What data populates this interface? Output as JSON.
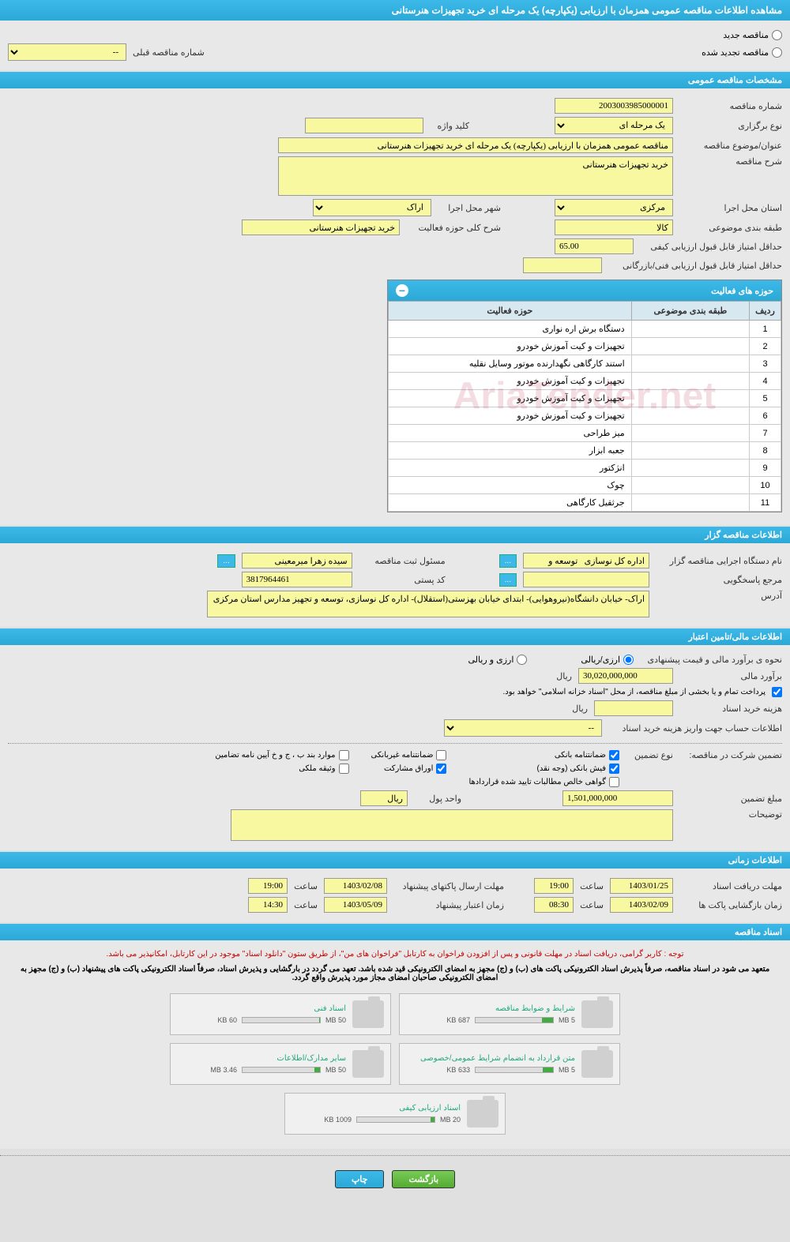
{
  "header": {
    "title": "مشاهده اطلاعات مناقصه عمومی همزمان با ارزیابی (یکپارچه) یک مرحله ای خرید تجهیزات هنرستانی"
  },
  "tender_type": {
    "new_label": "مناقصه جدید",
    "renewed_label": "مناقصه تجدید شده",
    "prev_number_label": "شماره مناقصه قبلی",
    "prev_number_value": "--"
  },
  "general_specs": {
    "section_title": "مشخصات مناقصه عمومی",
    "tender_number_label": "شماره مناقصه",
    "tender_number": "2003003985000001",
    "holding_type_label": "نوع برگزاری",
    "holding_type": "یک مرحله ای",
    "keyword_label": "کلید واژه",
    "keyword": "",
    "subject_label": "عنوان/موضوع مناقصه",
    "subject": "مناقصه عمومی همزمان با ارزیابی (یکپارچه) یک مرحله ای خرید تجهیزات هنرستانی",
    "description_label": "شرح مناقصه",
    "description": "خرید تجهیزات هنرستانی",
    "province_label": "استان محل اجرا",
    "province": "مرکزی",
    "city_label": "شهر محل اجرا",
    "city": "اراک",
    "category_label": "طبقه بندی موضوعی",
    "category": "کالا",
    "activity_scope_label": "شرح کلی حوزه فعالیت",
    "activity_scope": "خرید تجهیزات هنرستانی",
    "min_quality_score_label": "حداقل امتیاز قابل قبول ارزیابی کیفی",
    "min_quality_score": "65.00",
    "min_tech_score_label": "حداقل امتیاز قابل قبول ارزیابی فنی/بازرگانی",
    "min_tech_score": ""
  },
  "activities_table": {
    "title": "حوزه های فعالیت",
    "col_row": "ردیف",
    "col_category": "طبقه بندی موضوعی",
    "col_scope": "حوزه فعالیت",
    "rows": [
      {
        "n": "1",
        "cat": "",
        "scope": "دستگاه برش اره نواری"
      },
      {
        "n": "2",
        "cat": "",
        "scope": "تجهیزات و کیت آموزش خودرو"
      },
      {
        "n": "3",
        "cat": "",
        "scope": "استند کارگاهی نگهدارنده موتور وسایل نقلیه"
      },
      {
        "n": "4",
        "cat": "",
        "scope": "تجهیزات و کیت آموزش خودرو"
      },
      {
        "n": "5",
        "cat": "",
        "scope": "تجهیزات و کیت آموزش خودرو"
      },
      {
        "n": "6",
        "cat": "",
        "scope": "تجهیزات و کیت آموزش خودرو"
      },
      {
        "n": "7",
        "cat": "",
        "scope": "میز طراحی"
      },
      {
        "n": "8",
        "cat": "",
        "scope": "جعبه ابزار"
      },
      {
        "n": "9",
        "cat": "",
        "scope": "انژکتور"
      },
      {
        "n": "10",
        "cat": "",
        "scope": "چوک"
      },
      {
        "n": "11",
        "cat": "",
        "scope": "جرثقیل کارگاهی"
      }
    ]
  },
  "organizer": {
    "section_title": "اطلاعات مناقصه گزار",
    "org_name_label": "نام دستگاه اجرایی مناقصه گزار",
    "org_name": "اداره کل نوسازی   توسعه و",
    "registrar_label": "مسئول ثبت مناقصه",
    "registrar": "سیده زهرا میرمعینی",
    "responder_label": "مرجع پاسخگویی",
    "responder": "",
    "postal_code_label": "کد پستی",
    "postal_code": "3817964461",
    "address_label": "آدرس",
    "address": "اراک- خیابان دانشگاه(نیروهوایی)- ابتدای خیابان بهزستی(استقلال)- اداره کل نوسازی، توسعه و تجهیز مدارس استان مرکزی",
    "more_btn": "..."
  },
  "financial": {
    "section_title": "اطلاعات مالی/تامین اعتبار",
    "estimate_method_label": "نحوه ی برآورد مالی و قیمت پیشنهادی",
    "fx_rial_label": "ارزی/ریالی",
    "fx_and_rial_label": "ارزی و ریالی",
    "estimate_label": "برآورد مالی",
    "estimate": "30,020,000,000",
    "rial_label": "ریال",
    "treasury_note": "پرداخت تمام و یا بخشی از مبلغ مناقصه، از محل \"اسناد خزانه اسلامی\" خواهد بود.",
    "doc_cost_label": "هزینه خرید اسناد",
    "doc_cost": "",
    "account_info_label": "اطلاعات حساب جهت واریز هزینه خرید اسناد",
    "account_info": "--",
    "guarantee_label": "تضمین شرکت در مناقصه:",
    "guarantee_type_label": "نوع تضمین",
    "bank_guarantee": "ضمانتنامه بانکی",
    "nonbank_guarantee": "ضمانتنامه غیربانکی",
    "bylaw_items": "موارد بند ب ، ج و خ آیین نامه تضامین",
    "bank_receipt": "فیش بانکی (وجه نقد)",
    "securities": "اوراق مشارکت",
    "property_bond": "وثیقه ملکی",
    "cert_confirmed": "گواهی خالص مطالبات تایید شده قراردادها",
    "guarantee_amount_label": "مبلغ تضمین",
    "guarantee_amount": "1,501,000,000",
    "currency_unit_label": "واحد پول",
    "currency_unit": "ریال",
    "notes_label": "توضیحات",
    "notes": ""
  },
  "timing": {
    "section_title": "اطلاعات زمانی",
    "doc_deadline_label": "مهلت دریافت اسناد",
    "doc_deadline_date": "1403/01/25",
    "doc_deadline_time": "19:00",
    "envelope_deadline_label": "مهلت ارسال پاکتهای پیشنهاد",
    "envelope_deadline_date": "1403/02/08",
    "envelope_deadline_time": "19:00",
    "opening_label": "زمان بازگشایی پاکت ها",
    "opening_date": "1403/02/09",
    "opening_time": "08:30",
    "validity_label": "زمان اعتبار پیشنهاد",
    "validity_date": "1403/05/09",
    "validity_time": "14:30",
    "time_label": "ساعت"
  },
  "documents": {
    "section_title": "اسناد مناقصه",
    "notice": "توجه : کاربر گرامی، دریافت اسناد در مهلت قانونی و پس از افزودن فراخوان به کارتابل \"فراخوان های من\"، از طریق ستون \"دانلود اسناد\" موجود در این کارتابل، امکانپذیر می باشد.",
    "obligation": "متعهد می شود در اسناد مناقصه، صرفاً پذیرش اسناد الکترونیکی پاکت های (ب) و (ج) مجهز به امضای الکترونیکی قید شده باشد. تعهد می گردد در بارگشایی و پذیرش اسناد، صرفاً اسناد الکترونیکی پاکت های پیشنهاد (ب) و (ج) مجهز به امضای الکترونیکی صاحبان امضای مجاز مورد پذیرش واقع گردد.",
    "items": [
      {
        "title": "شرایط و ضوابط مناقصه",
        "used": "687 KB",
        "total": "5 MB",
        "pct": 14
      },
      {
        "title": "اسناد فنی",
        "used": "60 KB",
        "total": "50 MB",
        "pct": 1
      },
      {
        "title": "متن قرارداد به انضمام شرایط عمومی/خصوصی",
        "used": "633 KB",
        "total": "5 MB",
        "pct": 13
      },
      {
        "title": "سایر مدارک/اطلاعات",
        "used": "3.46 MB",
        "total": "50 MB",
        "pct": 7
      },
      {
        "title": "اسناد ارزیابی کیفی",
        "used": "1009 KB",
        "total": "20 MB",
        "pct": 5
      }
    ]
  },
  "footer": {
    "back": "بازگشت",
    "print": "چاپ"
  },
  "colors": {
    "header_bg": "#2ba8d6",
    "yellow_bg": "#f8f8a0",
    "page_bg": "#e0e0e0"
  }
}
